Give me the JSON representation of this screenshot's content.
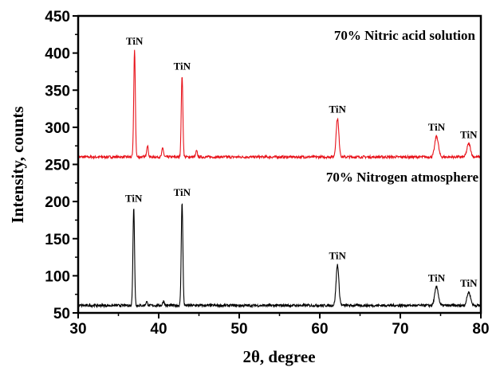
{
  "chart_data": {
    "type": "line",
    "title": "",
    "xlabel": "2θ, degree",
    "ylabel": "Intensity, counts",
    "xlim": [
      30,
      80
    ],
    "ylim": [
      50,
      450
    ],
    "xticks": [
      "30",
      "40",
      "50",
      "60",
      "70",
      "80"
    ],
    "yticks": [
      "50",
      "100",
      "150",
      "200",
      "250",
      "300",
      "350",
      "400",
      "450"
    ],
    "grid": false,
    "series": [
      {
        "name": "70% Nitric acid solution",
        "color": "#e8141c",
        "baseline": 260,
        "peaks": [
          {
            "x": 37.0,
            "y": 404,
            "label": "TiN"
          },
          {
            "x": 38.6,
            "y": 276
          },
          {
            "x": 40.5,
            "y": 272
          },
          {
            "x": 42.9,
            "y": 370,
            "label": "TiN"
          },
          {
            "x": 44.7,
            "y": 268
          },
          {
            "x": 62.2,
            "y": 312,
            "label": "TiN"
          },
          {
            "x": 74.5,
            "y": 288,
            "label": "TiN"
          },
          {
            "x": 78.5,
            "y": 278,
            "label": "TiN"
          }
        ]
      },
      {
        "name": "70% Nitrogen atmosphere",
        "color": "#000000",
        "baseline": 60,
        "peaks": [
          {
            "x": 36.9,
            "y": 192,
            "label": "TiN"
          },
          {
            "x": 38.5,
            "y": 65
          },
          {
            "x": 40.6,
            "y": 66
          },
          {
            "x": 42.9,
            "y": 200,
            "label": "TiN"
          },
          {
            "x": 62.2,
            "y": 115,
            "label": "TiN"
          },
          {
            "x": 74.5,
            "y": 85,
            "label": "TiN"
          },
          {
            "x": 78.5,
            "y": 78,
            "label": "TiN"
          }
        ]
      }
    ]
  }
}
